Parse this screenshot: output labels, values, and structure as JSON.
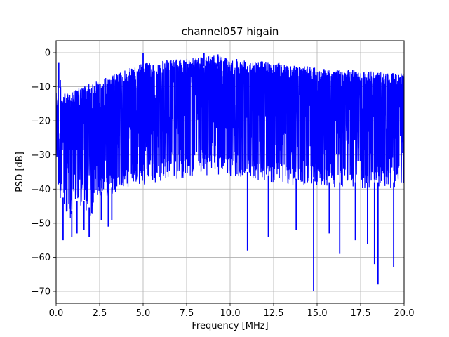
{
  "chart_data": {
    "type": "line",
    "title": "channel057 higain",
    "xlabel": "Frequency [MHz]",
    "ylabel": "PSD [dB]",
    "xlim": [
      0,
      20
    ],
    "ylim": [
      -73.5,
      3.5
    ],
    "xticks": [
      0,
      2.5,
      5,
      7.5,
      10,
      12.5,
      15,
      17.5,
      20
    ],
    "xtick_labels": [
      "0.0",
      "2.5",
      "5.0",
      "7.5",
      "10.0",
      "12.5",
      "15.0",
      "17.5",
      "20.0"
    ],
    "yticks": [
      0,
      -10,
      -20,
      -30,
      -40,
      -50,
      -60,
      -70
    ],
    "ytick_labels": [
      "0",
      "−10",
      "−20",
      "−30",
      "−40",
      "−50",
      "−60",
      "−70"
    ],
    "grid": true,
    "line_color": "#0000ff",
    "series": [
      {
        "description": "dense noisy PSD trace; upper envelope and lower envelope (dB) sampled at x",
        "x": [
          0.0,
          0.1,
          0.2,
          0.3,
          0.5,
          0.8,
          1.0,
          1.5,
          2.0,
          2.5,
          3.0,
          3.5,
          4.0,
          4.5,
          5.0,
          5.5,
          6.0,
          6.5,
          7.0,
          7.5,
          8.0,
          8.5,
          9.0,
          9.5,
          10.0,
          10.5,
          11.0,
          11.5,
          12.0,
          12.5,
          13.0,
          13.5,
          14.0,
          14.5,
          15.0,
          15.5,
          16.0,
          16.5,
          17.0,
          17.5,
          18.0,
          18.5,
          19.0,
          19.5,
          20.0
        ],
        "upper": [
          -13,
          -12,
          -3,
          -12,
          -12,
          -12,
          -11,
          -10,
          -9,
          -8,
          -7,
          -6,
          -5,
          -4,
          -3,
          -3,
          -2.5,
          -2,
          -2,
          -1.5,
          -1,
          -1,
          -1,
          -1,
          -1.5,
          -1.5,
          -2,
          -2,
          -2.5,
          -3,
          -3,
          -3.5,
          -4,
          -4,
          -4.5,
          -4.5,
          -5,
          -5,
          -5,
          -5.5,
          -5.5,
          -5.5,
          -6,
          -6,
          -6
        ],
        "lower": [
          -40,
          -44,
          -48,
          -45,
          -52,
          -55,
          -50,
          -49,
          -52,
          -47,
          -46,
          -45,
          -44,
          -43,
          -43,
          -42,
          -42,
          -41,
          -41,
          -41,
          -40,
          -40,
          -40,
          -40,
          -41,
          -41,
          -41,
          -42,
          -42,
          -42,
          -42,
          -43,
          -43,
          -43,
          -43,
          -44,
          -44,
          -44,
          -44,
          -44,
          -44,
          -44,
          -44,
          -44,
          -42
        ]
      }
    ],
    "dips": [
      {
        "x": 0.4,
        "y": -55
      },
      {
        "x": 0.9,
        "y": -54
      },
      {
        "x": 1.2,
        "y": -53
      },
      {
        "x": 1.6,
        "y": -52
      },
      {
        "x": 1.9,
        "y": -54
      },
      {
        "x": 2.6,
        "y": -49
      },
      {
        "x": 3.0,
        "y": -51
      },
      {
        "x": 3.2,
        "y": -49
      },
      {
        "x": 11.0,
        "y": -58
      },
      {
        "x": 12.2,
        "y": -54
      },
      {
        "x": 13.8,
        "y": -52
      },
      {
        "x": 14.8,
        "y": -70
      },
      {
        "x": 15.7,
        "y": -53
      },
      {
        "x": 16.3,
        "y": -59
      },
      {
        "x": 17.2,
        "y": -55
      },
      {
        "x": 17.9,
        "y": -56
      },
      {
        "x": 18.3,
        "y": -62
      },
      {
        "x": 18.5,
        "y": -68
      },
      {
        "x": 19.4,
        "y": -63
      }
    ],
    "spikes": [
      {
        "x": 0.15,
        "y": -3
      },
      {
        "x": 5.0,
        "y": 0
      },
      {
        "x": 8.5,
        "y": 0
      },
      {
        "x": 9.3,
        "y": -0.5
      }
    ]
  }
}
